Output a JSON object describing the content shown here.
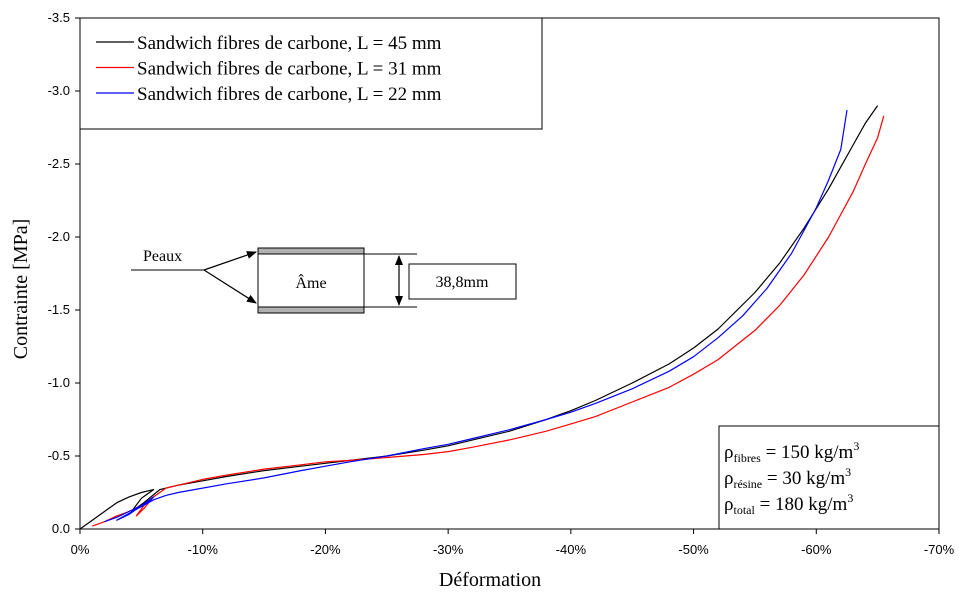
{
  "chart_data": {
    "type": "line",
    "title": "",
    "xlabel": "Déformation",
    "ylabel": "Contrainte [MPa]",
    "xlim": [
      0,
      -70
    ],
    "ylim": [
      0,
      -3.5
    ],
    "x_ticks": [
      0,
      -10,
      -20,
      -30,
      -40,
      -50,
      -60,
      -70
    ],
    "y_ticks": [
      0,
      -0.5,
      -1.0,
      -1.5,
      -2.0,
      -2.5,
      -3.0,
      -3.5
    ],
    "x_tick_labels": [
      "0%",
      "-10%",
      "-20%",
      "-30%",
      "-40%",
      "-50%",
      "-60%",
      "-70%"
    ],
    "y_tick_labels": [
      "0.0",
      "-0.5",
      "-1.0",
      "-1.5",
      "-2.0",
      "-2.5",
      "-3.0",
      "-3.5"
    ],
    "grid": false,
    "legend_position": "top-left",
    "series": [
      {
        "name": "Sandwich fibres de carbone, L = 45 mm",
        "color": "#000000",
        "x": [
          0,
          -1,
          -2,
          -3,
          -4,
          -5,
          -6,
          -5,
          -4.2,
          -5.2,
          -6.5,
          -8,
          -10,
          -12,
          -15,
          -18,
          -20,
          -22,
          -25,
          -28,
          -30,
          -32,
          -35,
          -38,
          -40,
          -42,
          -45,
          -48,
          -50,
          -52,
          -55,
          -57,
          -59,
          -61,
          -62,
          -63,
          -64,
          -65
        ],
        "y": [
          0,
          -0.06,
          -0.12,
          -0.18,
          -0.22,
          -0.25,
          -0.27,
          -0.21,
          -0.12,
          -0.18,
          -0.27,
          -0.3,
          -0.33,
          -0.36,
          -0.4,
          -0.43,
          -0.45,
          -0.47,
          -0.5,
          -0.54,
          -0.57,
          -0.61,
          -0.67,
          -0.75,
          -0.81,
          -0.88,
          -1.0,
          -1.13,
          -1.24,
          -1.37,
          -1.62,
          -1.82,
          -2.06,
          -2.33,
          -2.48,
          -2.63,
          -2.78,
          -2.9
        ]
      },
      {
        "name": "Sandwich fibres de carbone, L = 31 mm",
        "color": "#ff0000",
        "x": [
          -1,
          -2,
          -3,
          -4,
          -4.5,
          -5,
          -6,
          -5.2,
          -4.6,
          -5.2,
          -6,
          -7,
          -8,
          -10,
          -12,
          -15,
          -18,
          -20,
          -22,
          -25,
          -28,
          -30,
          -32,
          -35,
          -38,
          -40,
          -42,
          -45,
          -48,
          -50,
          -52,
          -55,
          -57,
          -59,
          -61,
          -63,
          -64,
          -65,
          -65.5
        ],
        "y": [
          -0.02,
          -0.05,
          -0.09,
          -0.12,
          -0.14,
          -0.16,
          -0.22,
          -0.16,
          -0.09,
          -0.14,
          -0.22,
          -0.28,
          -0.3,
          -0.34,
          -0.37,
          -0.41,
          -0.44,
          -0.46,
          -0.47,
          -0.49,
          -0.51,
          -0.53,
          -0.56,
          -0.61,
          -0.67,
          -0.72,
          -0.77,
          -0.87,
          -0.97,
          -1.06,
          -1.16,
          -1.36,
          -1.53,
          -1.74,
          -2.0,
          -2.31,
          -2.5,
          -2.68,
          -2.83
        ]
      },
      {
        "name": "Sandwich fibres de carbone, L = 22 mm",
        "color": "#0000ff",
        "x": [
          -2,
          -3,
          -4,
          -5,
          -5.5,
          -6,
          -5,
          -4,
          -3,
          -4.5,
          -6,
          -7,
          -8,
          -10,
          -12,
          -15,
          -18,
          -20,
          -22,
          -25,
          -28,
          -30,
          -32,
          -35,
          -38,
          -40,
          -42,
          -45,
          -48,
          -50,
          -52,
          -54,
          -56,
          -58,
          -60,
          -61,
          -62,
          -62.5
        ],
        "y": [
          -0.05,
          -0.08,
          -0.12,
          -0.16,
          -0.18,
          -0.22,
          -0.16,
          -0.1,
          -0.06,
          -0.13,
          -0.2,
          -0.23,
          -0.25,
          -0.28,
          -0.31,
          -0.35,
          -0.4,
          -0.43,
          -0.46,
          -0.5,
          -0.55,
          -0.58,
          -0.62,
          -0.68,
          -0.75,
          -0.8,
          -0.86,
          -0.96,
          -1.08,
          -1.18,
          -1.31,
          -1.46,
          -1.65,
          -1.89,
          -2.2,
          -2.39,
          -2.6,
          -2.87
        ]
      }
    ]
  },
  "legend": [
    {
      "label": "Sandwich fibres de carbone, L = 45 mm",
      "color": "#000000"
    },
    {
      "label": "Sandwich fibres de carbone, L = 31 mm",
      "color": "#ff0000"
    },
    {
      "label": "Sandwich fibres de carbone, L = 22 mm",
      "color": "#0000ff"
    }
  ],
  "densities": [
    {
      "symbol": "ρ",
      "sub": "fibres",
      "text": " = 150 kg/m",
      "sup": "3"
    },
    {
      "symbol": "ρ",
      "sub": "résine",
      "text": " = 30 kg/m",
      "sup": "3"
    },
    {
      "symbol": "ρ",
      "sub": "total",
      "text": " = 180 kg/m",
      "sup": "3"
    }
  ],
  "schema": {
    "skins_label": "Peaux",
    "core_label": "Âme",
    "thickness_label": "38,8mm"
  }
}
